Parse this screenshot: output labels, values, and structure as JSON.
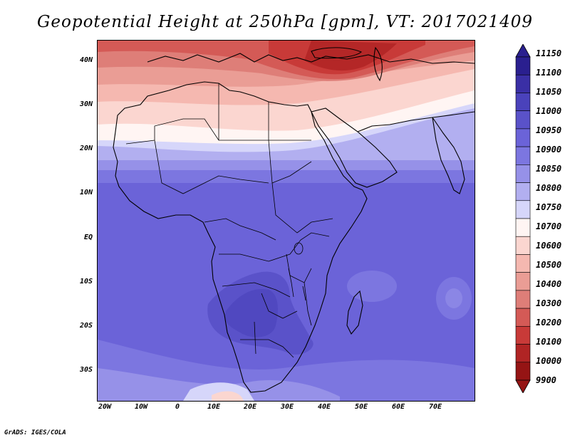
{
  "title": "Geopotential Height at 250hPa [gpm], VT: 2017021409",
  "footer": "GrADS: IGES/COLA",
  "map": {
    "region": "Africa",
    "lon_range": [
      -25,
      80
    ],
    "lat_range": [
      -37,
      45
    ],
    "lat_ticks": [
      "40N",
      "30N",
      "20N",
      "10N",
      "EQ",
      "10S",
      "20S",
      "30S"
    ],
    "lon_ticks": [
      "20W",
      "10W",
      "0",
      "10E",
      "20E",
      "30E",
      "40E",
      "50E",
      "60E",
      "70E"
    ]
  },
  "colorbar": {
    "levels": [
      "11150",
      "11100",
      "11050",
      "11000",
      "10950",
      "10900",
      "10850",
      "10800",
      "10750",
      "10700",
      "10600",
      "10500",
      "10400",
      "10300",
      "10200",
      "10100",
      "10000",
      "9900"
    ],
    "colors": [
      "#2a1f8f",
      "#3a2fa5",
      "#4a42bb",
      "#5a52c9",
      "#6b63d8",
      "#7c76e0",
      "#9691e8",
      "#b2aff0",
      "#d6d6fa",
      "#fff5f3",
      "#fbd6d0",
      "#f5b8b0",
      "#ea9d95",
      "#de7e78",
      "#d45a56",
      "#c83a38",
      "#b02424",
      "#951414"
    ]
  }
}
